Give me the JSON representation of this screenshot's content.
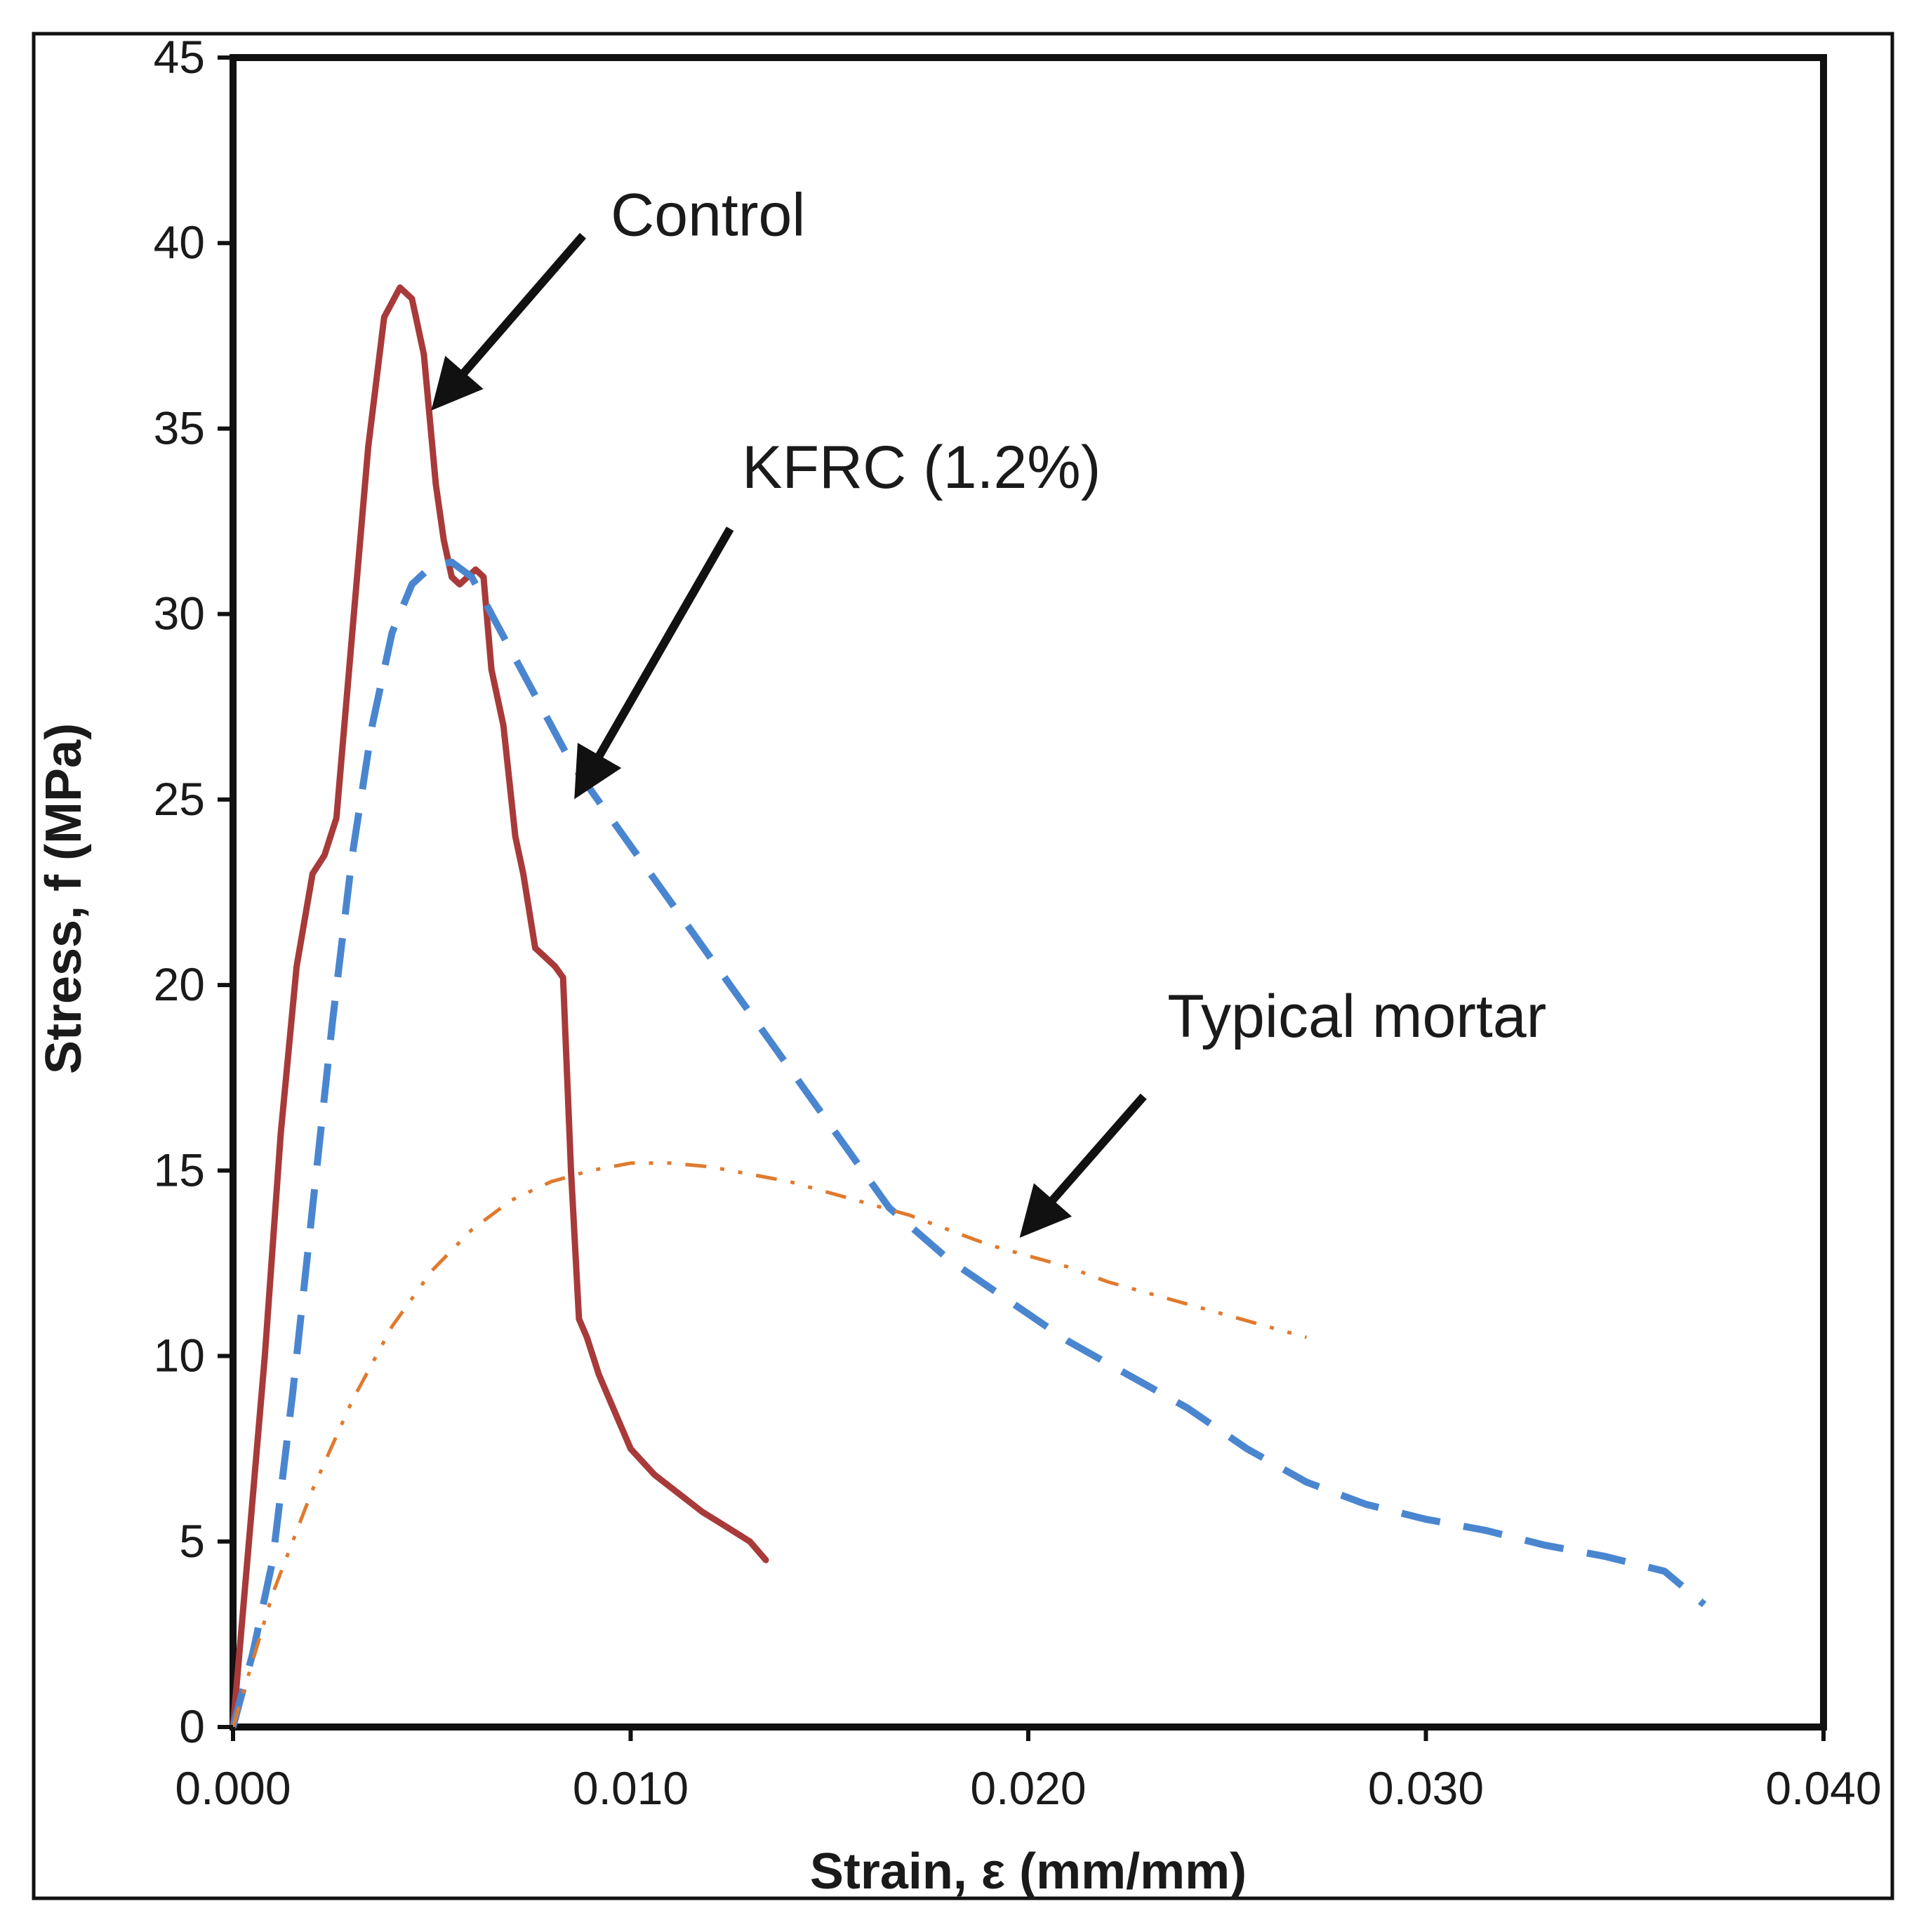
{
  "chart_data": {
    "type": "line",
    "title": "",
    "xlabel": "Strain, ε (mm/mm)",
    "ylabel": "Stress, f (MPa)",
    "xlim": [
      0,
      0.04
    ],
    "ylim": [
      0,
      45
    ],
    "xticks": [
      0,
      0.01,
      0.02,
      0.03,
      0.04
    ],
    "xtick_labels": [
      "0.000",
      "0.010",
      "0.020",
      "0.030",
      "0.040"
    ],
    "yticks": [
      0,
      5,
      10,
      15,
      20,
      25,
      30,
      35,
      40,
      45
    ],
    "ytick_labels": [
      "0",
      "5",
      "10",
      "15",
      "20",
      "25",
      "30",
      "35",
      "40",
      "45"
    ],
    "grid": false,
    "legend": "none",
    "series": [
      {
        "name": "Control",
        "color": "#a83a3a",
        "style": "solid",
        "x": [
          0,
          0.0004,
          0.0008,
          0.0012,
          0.0016,
          0.002,
          0.0023,
          0.0026,
          0.003,
          0.0034,
          0.0038,
          0.0042,
          0.0045,
          0.0048,
          0.0051,
          0.0053,
          0.0055,
          0.0057,
          0.0059,
          0.0061,
          0.0063,
          0.0065,
          0.0068,
          0.0071,
          0.0073,
          0.0076,
          0.0078,
          0.0081,
          0.0083,
          0.0085,
          0.0087,
          0.0089,
          0.0092,
          0.0096,
          0.01,
          0.0106,
          0.0112,
          0.0118,
          0.0124,
          0.013,
          0.0134
        ],
        "values": [
          0,
          5,
          10,
          16,
          20.5,
          23,
          23.5,
          24.5,
          29.5,
          34.5,
          38,
          38.8,
          38.5,
          37,
          33.5,
          32,
          31,
          30.8,
          31,
          31.2,
          31,
          28.5,
          27,
          24,
          23,
          21,
          20.8,
          20.5,
          20.2,
          15,
          11,
          10.5,
          9.5,
          8.5,
          7.5,
          6.8,
          6.3,
          5.8,
          5.4,
          5.0,
          4.5
        ]
      },
      {
        "name": "KFRC (1.2%)",
        "color": "#4a86d0",
        "style": "dashed",
        "x": [
          0,
          0.0005,
          0.001,
          0.0015,
          0.002,
          0.0025,
          0.003,
          0.0035,
          0.004,
          0.0045,
          0.005,
          0.0055,
          0.006,
          0.0065,
          0.0075,
          0.0085,
          0.0095,
          0.0105,
          0.0115,
          0.0125,
          0.0135,
          0.0145,
          0.0155,
          0.0165,
          0.018,
          0.0195,
          0.021,
          0.0225,
          0.024,
          0.0255,
          0.027,
          0.0285,
          0.03,
          0.0315,
          0.033,
          0.0345,
          0.036,
          0.037
        ],
        "values": [
          0,
          2,
          4.5,
          9,
          14,
          19,
          23.5,
          27,
          29.5,
          30.8,
          31.3,
          31.4,
          31,
          30,
          28,
          26,
          24.5,
          23,
          21.5,
          20,
          18.5,
          17,
          15.5,
          14,
          12.6,
          11.5,
          10.4,
          9.5,
          8.6,
          7.5,
          6.6,
          6.0,
          5.6,
          5.3,
          4.9,
          4.6,
          4.2,
          3.3
        ]
      },
      {
        "name": "Typical mortar",
        "color": "#e07a2e",
        "style": "dashdot",
        "x": [
          0,
          0.001,
          0.002,
          0.003,
          0.004,
          0.005,
          0.006,
          0.007,
          0.008,
          0.009,
          0.01,
          0.011,
          0.012,
          0.013,
          0.014,
          0.015,
          0.016,
          0.017,
          0.018,
          0.019,
          0.02,
          0.021,
          0.022,
          0.023,
          0.024,
          0.025,
          0.026,
          0.027
        ],
        "values": [
          0,
          3.6,
          6.4,
          8.8,
          10.8,
          12.3,
          13.4,
          14.2,
          14.7,
          15.0,
          15.2,
          15.2,
          15.1,
          14.9,
          14.7,
          14.4,
          14.1,
          13.8,
          13.4,
          13.0,
          12.7,
          12.4,
          12.0,
          11.7,
          11.4,
          11.1,
          10.8,
          10.5
        ]
      }
    ],
    "annotations": [
      {
        "text": "Control",
        "x": 0.0095,
        "y": 40.2,
        "arrow_to": [
          0.0054,
          36.0
        ],
        "arrow_from": [
          0.0088,
          40.2
        ]
      },
      {
        "text": "KFRC (1.2%)",
        "x": 0.0128,
        "y": 33.4,
        "arrow_to": [
          0.0089,
          25.6
        ],
        "arrow_from": [
          0.0125,
          32.3
        ]
      },
      {
        "text": "Typical mortar",
        "x": 0.0235,
        "y": 18.6,
        "arrow_to": [
          0.0202,
          13.7
        ],
        "arrow_from": [
          0.0229,
          17.0
        ]
      }
    ]
  }
}
